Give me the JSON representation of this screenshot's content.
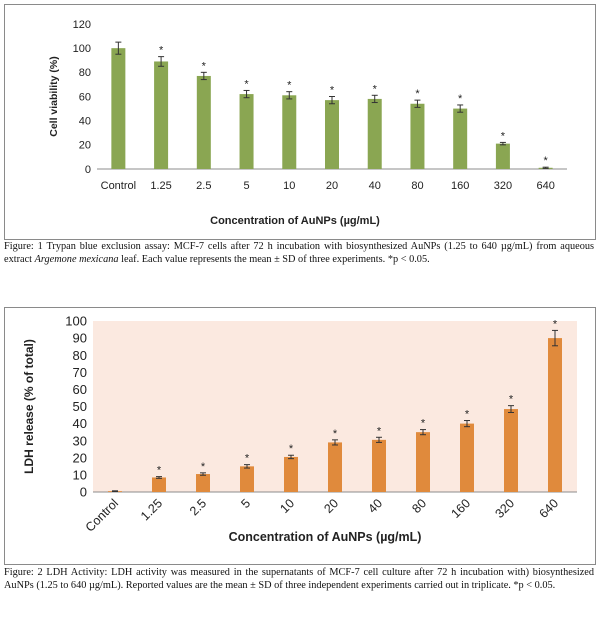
{
  "chart_data": [
    {
      "type": "bar",
      "categories": [
        "Control",
        "1.25",
        "2.5",
        "5",
        "10",
        "20",
        "40",
        "80",
        "160",
        "320",
        "640"
      ],
      "values": [
        100,
        89,
        77,
        62,
        61,
        57,
        58,
        54,
        50,
        21,
        1
      ],
      "errors": [
        5,
        4,
        3,
        3,
        3,
        3,
        3,
        3,
        3,
        1,
        0.5
      ],
      "significance": [
        "",
        "*",
        "*",
        "*",
        "*",
        "*",
        "*",
        "*",
        "*",
        "*",
        "*"
      ],
      "yticks": [
        0,
        20,
        40,
        60,
        80,
        100,
        120
      ],
      "ylim": [
        0,
        120
      ],
      "ylabel": "Cell viability (%)",
      "xlabel": "Concentration of AuNPs (µg/mL)",
      "bar_color": "#8aa652",
      "background": "#ffffff"
    },
    {
      "type": "bar",
      "categories": [
        "Control",
        "1.25",
        "2.5",
        "5",
        "10",
        "20",
        "40",
        "80",
        "160",
        "320",
        "640"
      ],
      "values": [
        0.5,
        8.5,
        10.5,
        15,
        20.5,
        29,
        30.5,
        35,
        40,
        48.5,
        90
      ],
      "errors": [
        0.2,
        0.5,
        0.7,
        1,
        1,
        1.5,
        1.5,
        1.5,
        1.8,
        2,
        4.5
      ],
      "significance": [
        "",
        "*",
        "*",
        "*",
        "*",
        "*",
        "*",
        "*",
        "*",
        "*",
        "*"
      ],
      "yticks": [
        0,
        10,
        20,
        30,
        40,
        50,
        60,
        70,
        80,
        90,
        100
      ],
      "ylim": [
        0,
        100
      ],
      "ylabel": "LDH release  (% of total)",
      "xlabel": "Concentration of AuNPs (µg/mL)",
      "bar_color": "#e08a3c",
      "background": "#fbe9e0"
    }
  ],
  "captions": {
    "fig1_before": "Figure: 1 Trypan blue exclusion assay: MCF-7 cells after 72 h incubation with biosynthesized AuNPs (1.25 to 640 µg/mL) from aqueous extract ",
    "fig1_italic": "Argemone mexicana",
    "fig1_after": " leaf. Each value represents the mean ± SD of three experiments. *p < 0.05.",
    "fig2": "Figure: 2 LDH Activity: LDH activity was measured in the supernatants of MCF-7 cell culture after 72 h incubation with) biosynthesized AuNPs (1.25 to 640 µg/mL). Reported values are the mean ± SD of three independent experiments carried out in triplicate. *p < 0.05."
  }
}
